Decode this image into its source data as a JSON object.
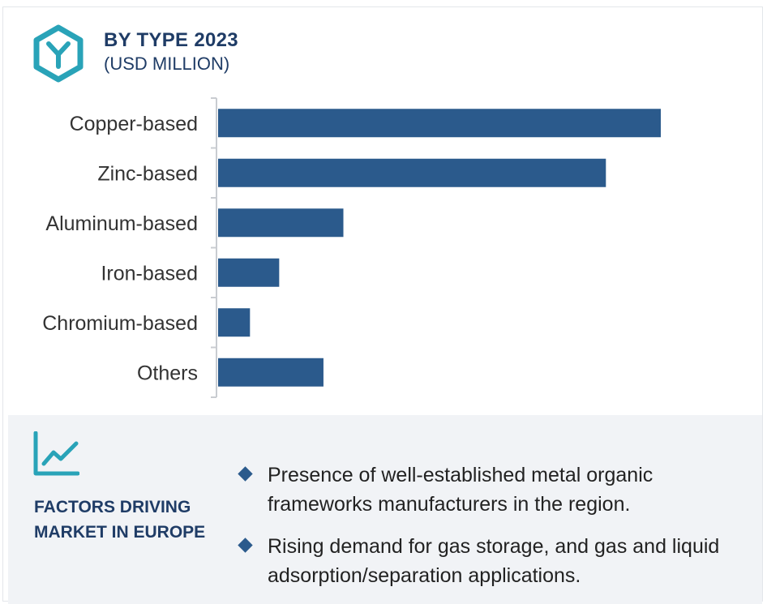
{
  "header": {
    "title": "BY  TYPE 2023",
    "subtitle": "(USD MILLION)",
    "logo_icon": "hexagon-y-icon"
  },
  "colors": {
    "bar": "#2b5a8c",
    "accent": "#29a3b8",
    "title": "#1f3c66",
    "axis": "#c9ccd1",
    "label": "#333333"
  },
  "chart_data": {
    "type": "bar",
    "orientation": "horizontal",
    "title": "BY  TYPE 2023",
    "subtitle": "(USD MILLION)",
    "categories": [
      "Copper-based",
      "Zinc-based",
      "Aluminum-based",
      "Iron-based",
      "Chromium-based",
      "Others"
    ],
    "values": [
      100,
      87.6,
      28.3,
      13.8,
      7.2,
      23.8
    ],
    "xlim": [
      0,
      100
    ],
    "grid": false,
    "legend": "none",
    "value_axis_labels": "none"
  },
  "factors": {
    "icon": "trend-chart-icon",
    "title": "FACTORS DRIVING MARKET IN EUROPE",
    "bullets": [
      "Presence of well-established metal organic frameworks manufacturers in the region.",
      "Rising demand for gas storage, and gas and liquid adsorption/separation applications."
    ]
  }
}
